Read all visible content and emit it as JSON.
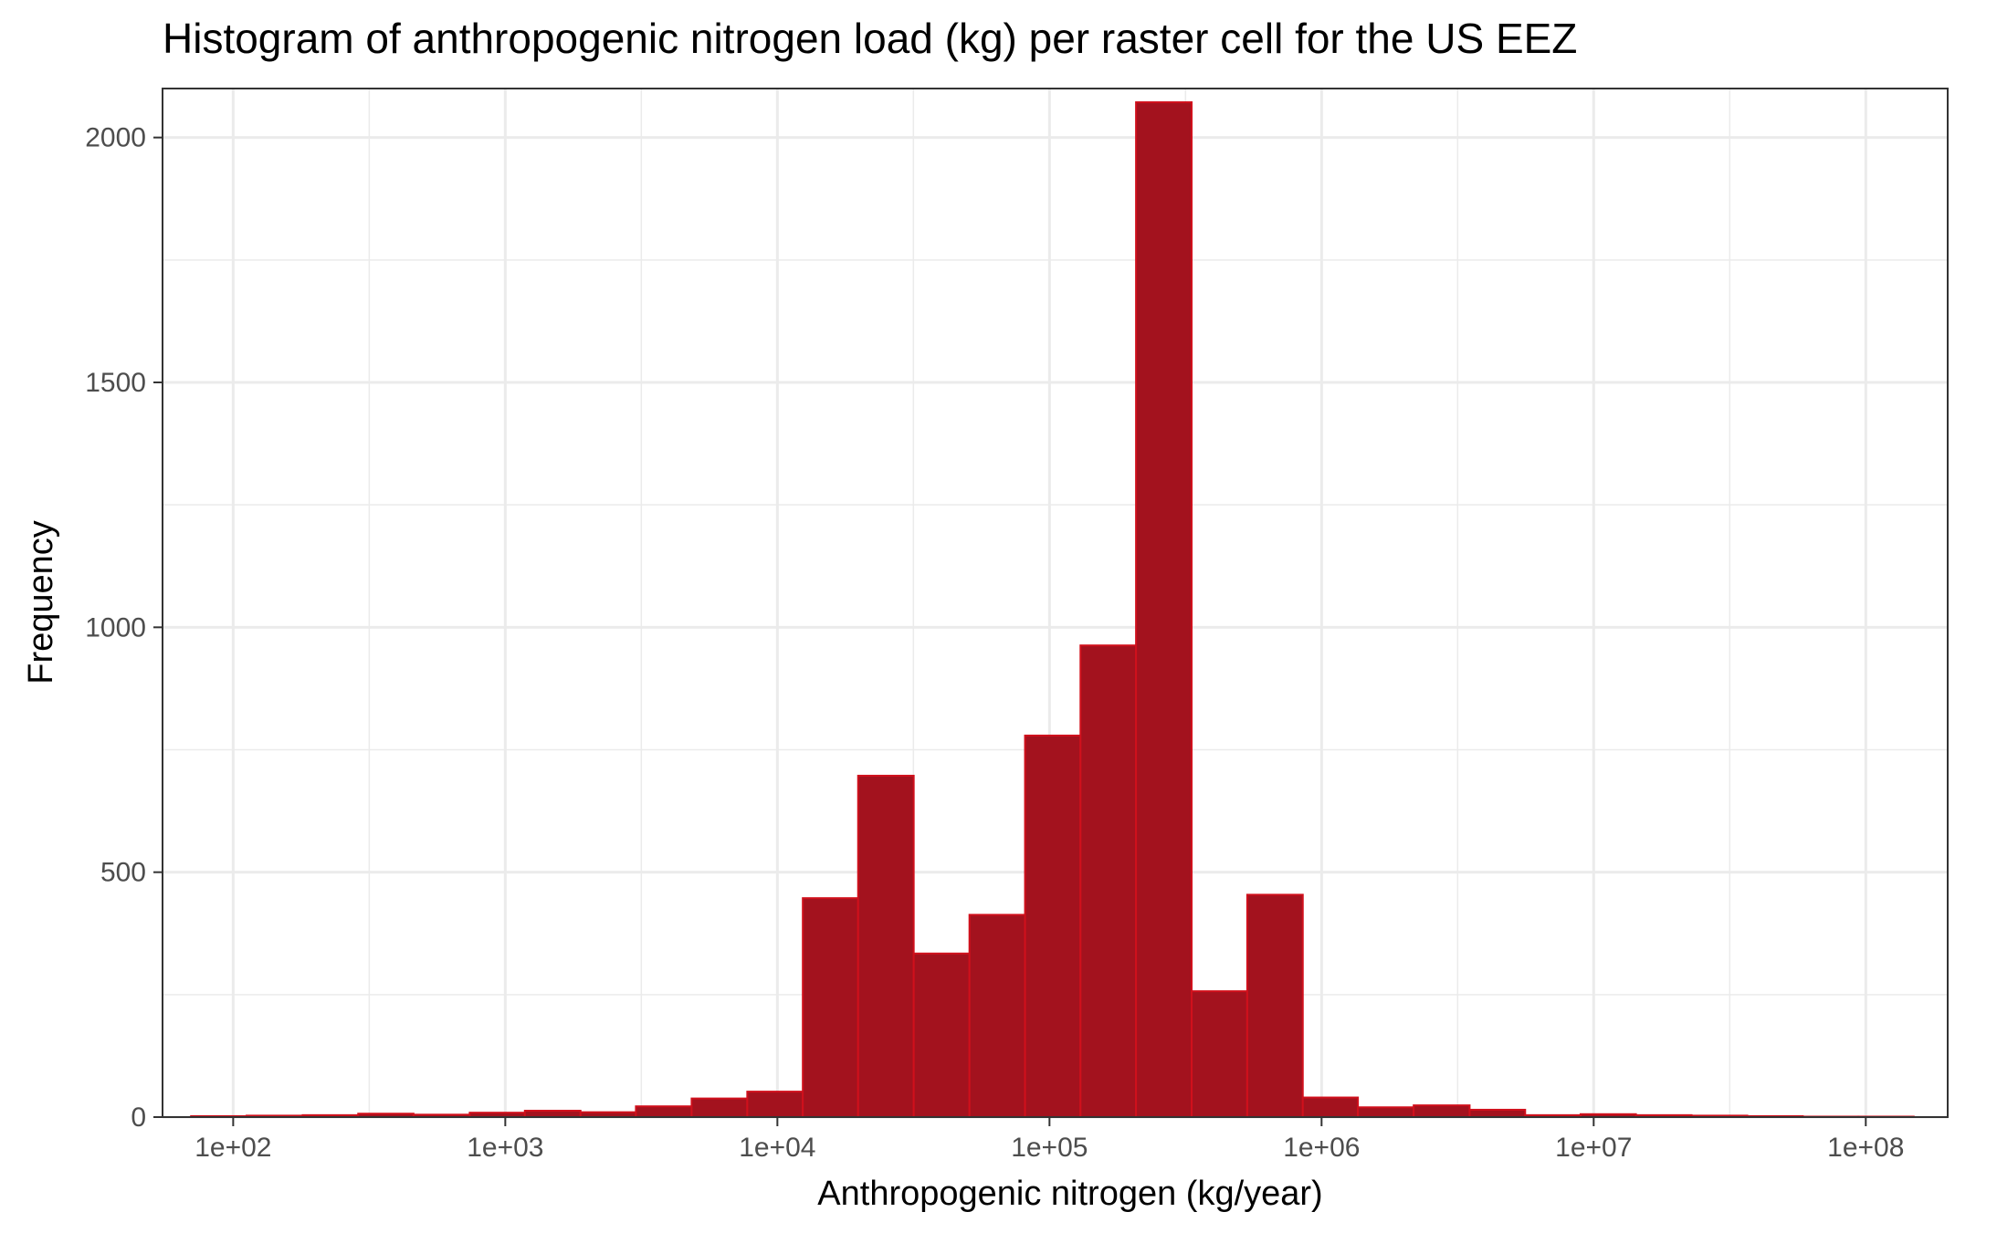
{
  "chart_data": {
    "type": "bar",
    "title": "Histogram of anthropogenic nitrogen load (kg) per raster cell for the US EEZ",
    "xlabel": "Anthropogenic nitrogen (kg/year)",
    "ylabel": "Frequency",
    "x_scale": "log10",
    "xlim": [
      55,
      200000000
    ],
    "ylim": [
      0,
      2100
    ],
    "grid": true,
    "legend": "none",
    "x_ticks": [
      {
        "value": 100,
        "label": "1e+02"
      },
      {
        "value": 1000,
        "label": "1e+03"
      },
      {
        "value": 10000,
        "label": "1e+04"
      },
      {
        "value": 100000,
        "label": "1e+05"
      },
      {
        "value": 1000000,
        "label": "1e+06"
      },
      {
        "value": 10000000,
        "label": "1e+07"
      },
      {
        "value": 100000000,
        "label": "1e+08"
      }
    ],
    "y_ticks": [
      {
        "value": 0,
        "label": "0"
      },
      {
        "value": 500,
        "label": "500"
      },
      {
        "value": 1000,
        "label": "1000"
      },
      {
        "value": 1500,
        "label": "1500"
      },
      {
        "value": 2000,
        "label": "2000"
      }
    ],
    "y_minor_ticks": [
      250,
      750,
      1250,
      1750
    ],
    "bin_edges": [
      70,
      112,
      180,
      288,
      460,
      740,
      1180,
      1890,
      3020,
      4840,
      7750,
      12400,
      19800,
      31700,
      50800,
      81300,
      130000,
      208000,
      333000,
      533000,
      853000,
      1360000,
      2180000,
      3500000,
      5600000,
      8950000,
      14300000,
      22900000,
      36700000,
      58700000,
      94000000,
      150000000
    ],
    "values": [
      2,
      3,
      4,
      7,
      5,
      9,
      13,
      10,
      22,
      38,
      52,
      447,
      697,
      334,
      413,
      779,
      963,
      2072,
      257,
      454,
      40,
      20,
      24,
      15,
      4,
      6,
      4,
      3,
      2,
      1,
      1
    ],
    "colors": {
      "fill": "#a3121e",
      "outline": "#d0101c",
      "grid": "#ebebeb",
      "axis": "#333333"
    }
  }
}
